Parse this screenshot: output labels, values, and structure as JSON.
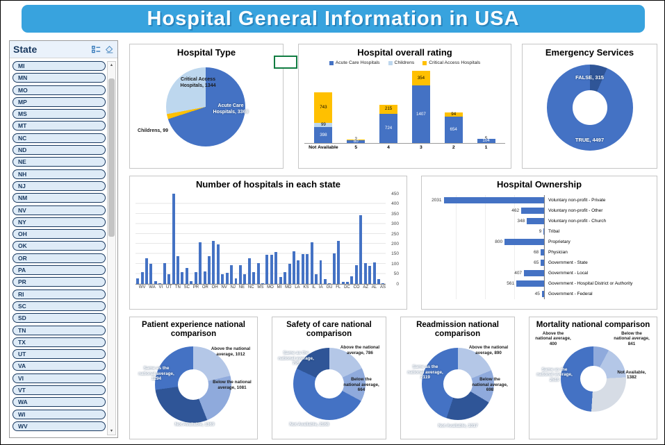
{
  "header": {
    "title": "Hospital General Information in USA"
  },
  "sidebar": {
    "title": "State",
    "items": [
      "MI",
      "MN",
      "MO",
      "MP",
      "MS",
      "MT",
      "NC",
      "ND",
      "NE",
      "NH",
      "NJ",
      "NM",
      "NV",
      "NY",
      "OH",
      "OK",
      "OR",
      "PA",
      "PR",
      "RI",
      "SC",
      "SD",
      "TN",
      "TX",
      "UT",
      "VA",
      "VI",
      "VT",
      "WA",
      "WI",
      "WV"
    ]
  },
  "colors": {
    "accent_blue": "#4472C4",
    "light_blue": "#BDD7EE",
    "yellow": "#FFC000",
    "dark_blue": "#2F5597",
    "banner": "#38A3DE"
  },
  "chart_data": [
    {
      "id": "hospital-type",
      "type": "pie",
      "title": "Hospital Type",
      "segments": [
        {
          "label": "Acute Care Hospitals",
          "value": 3369,
          "color": "#4472C4"
        },
        {
          "label": "Childrens",
          "value": 99,
          "color": "#FFC000"
        },
        {
          "label": "Critical Access Hospitals",
          "value": 1344,
          "color": "#BDD7EE"
        }
      ]
    },
    {
      "id": "hospital-overall-rating",
      "type": "bar",
      "stacked": true,
      "title": "Hospital overall rating",
      "categories": [
        "Not Available",
        "5",
        "4",
        "3",
        "2",
        "1"
      ],
      "series": [
        {
          "name": "Acute Care Hospitals",
          "color": "#4472C4",
          "values": [
            398,
            80,
            724,
            1407,
            654,
            104
          ]
        },
        {
          "name": "Childrens",
          "color": "#BDD7EE",
          "values": [
            99,
            0,
            0,
            0,
            0,
            0
          ]
        },
        {
          "name": "Critical Access Hospitals",
          "color": "#FFC000",
          "values": [
            743,
            2,
            215,
            354,
            94,
            5
          ]
        }
      ]
    },
    {
      "id": "emergency-services",
      "type": "donut",
      "title": "Emergency Services",
      "segments": [
        {
          "label": "FALSE",
          "value": 315,
          "color": "#2F5597"
        },
        {
          "label": "TRUE",
          "value": 4497,
          "color": "#4472C4"
        }
      ]
    },
    {
      "id": "hospitals-by-state",
      "type": "bar",
      "title": "Number of hospitals in each state",
      "categories": [
        "WY",
        "WV",
        "WI",
        "WA",
        "VT",
        "VI",
        "VA",
        "UT",
        "TX",
        "TN",
        "SD",
        "SC",
        "RI",
        "PR",
        "PA",
        "OR",
        "OK",
        "OH",
        "NY",
        "NV",
        "NM",
        "NJ",
        "NH",
        "NE",
        "ND",
        "NC",
        "MT",
        "MS",
        "MP",
        "MO",
        "MN",
        "MI",
        "ME",
        "MD",
        "MA",
        "LA",
        "KY",
        "KS",
        "IN",
        "IL",
        "ID",
        "IA",
        "HI",
        "GU",
        "GA",
        "FL",
        "DE",
        "DC",
        "CT",
        "CO",
        "CA",
        "AZ",
        "AR",
        "AL",
        "AK",
        "AS"
      ],
      "values": [
        30,
        60,
        130,
        100,
        16,
        2,
        105,
        50,
        450,
        140,
        60,
        80,
        15,
        60,
        210,
        62,
        140,
        215,
        200,
        50,
        55,
        95,
        30,
        95,
        50,
        130,
        60,
        105,
        1,
        145,
        145,
        160,
        37,
        60,
        100,
        165,
        120,
        150,
        150,
        210,
        50,
        120,
        25,
        2,
        155,
        215,
        12,
        11,
        40,
        95,
        345,
        105,
        90,
        110,
        25,
        2
      ],
      "ylim": [
        0,
        450
      ],
      "yticks": [
        0,
        50,
        100,
        150,
        200,
        250,
        300,
        350,
        400,
        450
      ]
    },
    {
      "id": "hospital-ownership",
      "type": "bar",
      "orientation": "horizontal",
      "title": "Hospital Ownership",
      "categories": [
        "Voluntary non-profit - Private",
        "Voluntary non-profit - Other",
        "Voluntary non-profit - Church",
        "Tribal",
        "Proprietary",
        "Physician",
        "Government - State",
        "Government - Local",
        "Government - Hospital District or Authority",
        "Government - Federal"
      ],
      "values": [
        2031,
        462,
        348,
        9,
        800,
        68,
        65,
        407,
        561,
        45
      ]
    },
    {
      "id": "patient-experience",
      "type": "donut",
      "title": "Patient experience national comparison",
      "segments": [
        {
          "label": "Above the national average",
          "value": 1012,
          "color": "#B4C7E7"
        },
        {
          "label": "Below the national average",
          "value": 1081,
          "color": "#8FAADC"
        },
        {
          "label": "Not Available",
          "value": 1369,
          "color": "#2F5597"
        },
        {
          "label": "Same as the national average",
          "value": 1294,
          "color": "#4472C4"
        }
      ]
    },
    {
      "id": "safety-of-care",
      "type": "donut",
      "title": "Safety of care national comparison",
      "segments": [
        {
          "label": "Above the national average",
          "value": 786,
          "color": "#B4C7E7"
        },
        {
          "label": "Below the national average",
          "value": 664,
          "color": "#8FAADC"
        },
        {
          "label": "Not Available",
          "value": 2168,
          "color": "#4472C4"
        },
        {
          "label": "Same as the national average",
          "value": 795,
          "color": "#2F5597"
        }
      ]
    },
    {
      "id": "readmission",
      "type": "donut",
      "title": "Readmission national comparison",
      "segments": [
        {
          "label": "Above the national average",
          "value": 890,
          "color": "#B4C7E7"
        },
        {
          "label": "Below the national average",
          "value": 698,
          "color": "#8FAADC"
        },
        {
          "label": "Not Available",
          "value": 1017,
          "color": "#2F5597"
        },
        {
          "label": "Same as the national average",
          "value": 2119,
          "color": "#4472C4"
        }
      ]
    },
    {
      "id": "mortality",
      "type": "donut",
      "title": "Mortality national comparison",
      "segments": [
        {
          "label": "Above the national average",
          "value": 400,
          "color": "#8FAADC"
        },
        {
          "label": "Below the national average",
          "value": 841,
          "color": "#B4C7E7"
        },
        {
          "label": "Not Available",
          "value": 1382,
          "color": "#D6DCE5"
        },
        {
          "label": "Same as the national average",
          "value": 2519,
          "color": "#4472C4"
        }
      ]
    }
  ]
}
